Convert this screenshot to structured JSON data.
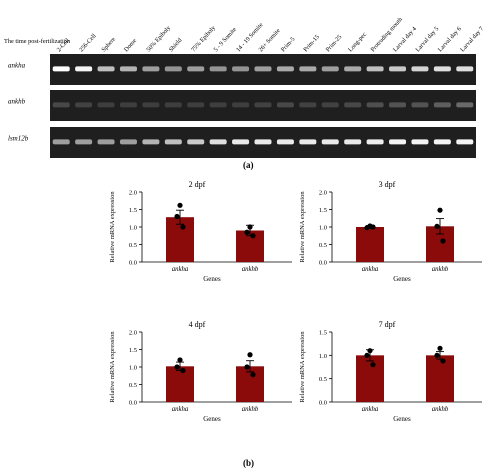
{
  "gel": {
    "header_label": "The time post-fertilization",
    "stages": [
      "2-Cell",
      "256-Cell",
      "Sphere",
      "Dome",
      "50% Epiboly",
      "Shield",
      "75% Epiboly",
      "5 - 9 Somite",
      "14 - 19 Somite",
      "26+ Somite",
      "Prim-5",
      "Prim-15",
      "Prim-25",
      "Long-pec",
      "Protruding mouth",
      "Larval day 4",
      "Larval day 5",
      "Larval day 6",
      "Larval day 7"
    ],
    "rows": [
      {
        "label": "ankha",
        "band_intensity": [
          1.0,
          0.95,
          0.7,
          0.65,
          0.55,
          0.5,
          0.55,
          0.5,
          0.5,
          0.55,
          0.6,
          0.6,
          0.55,
          0.6,
          0.7,
          0.75,
          0.8,
          0.85,
          0.85
        ]
      },
      {
        "label": "ankhb",
        "band_intensity": [
          0.15,
          0.12,
          0.1,
          0.1,
          0.1,
          0.1,
          0.1,
          0.1,
          0.1,
          0.12,
          0.15,
          0.12,
          0.12,
          0.15,
          0.18,
          0.2,
          0.2,
          0.25,
          0.3
        ]
      },
      {
        "label": "lsm12b",
        "band_intensity": [
          0.55,
          0.55,
          0.55,
          0.55,
          0.65,
          0.7,
          0.75,
          0.85,
          0.9,
          0.9,
          0.9,
          0.9,
          0.9,
          0.9,
          0.92,
          0.95,
          0.95,
          0.95,
          0.95
        ]
      }
    ],
    "panel_label": "(a)"
  },
  "bars": {
    "color": "#8b0a0a",
    "panel_label": "(b)"
  },
  "chart_data": [
    {
      "type": "bar",
      "title": "2 dpf",
      "categories": [
        "ankha",
        "ankhb"
      ],
      "values": [
        1.28,
        0.9
      ],
      "errors": [
        0.2,
        0.15
      ],
      "points": [
        [
          1.62,
          1.3,
          1.0
        ],
        [
          1.0,
          0.85,
          0.75
        ]
      ],
      "xlabel": "Genes",
      "ylabel": "Relative mRNA expression",
      "ylim": [
        0,
        2.0
      ],
      "yticks": [
        "0.0",
        "0.5",
        "1.0",
        "1.5",
        "2.0"
      ]
    },
    {
      "type": "bar",
      "title": "3 dpf",
      "categories": [
        "ankha",
        "ankhb"
      ],
      "values": [
        1.0,
        1.02
      ],
      "errors": [
        0.04,
        0.22
      ],
      "points": [
        [
          1.03,
          0.98,
          1.0
        ],
        [
          1.48,
          1.02,
          0.6
        ]
      ],
      "xlabel": "Genes",
      "ylabel": "Relative mRNA expression",
      "ylim": [
        0,
        2.0
      ],
      "yticks": [
        "0.0",
        "0.5",
        "1.0",
        "1.5",
        "2.0"
      ]
    },
    {
      "type": "bar",
      "title": "4 dpf",
      "categories": [
        "ankha",
        "ankhb"
      ],
      "values": [
        1.02,
        1.02
      ],
      "errors": [
        0.12,
        0.16
      ],
      "points": [
        [
          1.2,
          1.0,
          0.9
        ],
        [
          1.35,
          1.0,
          0.78
        ]
      ],
      "xlabel": "Genes",
      "ylabel": "Relative mRNA expression",
      "ylim": [
        0,
        2.0
      ],
      "yticks": [
        "0.0",
        "0.5",
        "1.0",
        "1.5",
        "2.0"
      ]
    },
    {
      "type": "bar",
      "title": "7 dpf",
      "categories": [
        "ankha",
        "ankhb"
      ],
      "values": [
        1.0,
        1.0
      ],
      "errors": [
        0.12,
        0.08
      ],
      "points": [
        [
          1.1,
          1.0,
          0.8
        ],
        [
          1.15,
          1.0,
          0.88
        ]
      ],
      "xlabel": "Genes",
      "ylabel": "Relative mRNA expression",
      "ylim": [
        0,
        1.5
      ],
      "yticks": [
        "0.0",
        "0.5",
        "1.0",
        "1.5"
      ]
    }
  ]
}
